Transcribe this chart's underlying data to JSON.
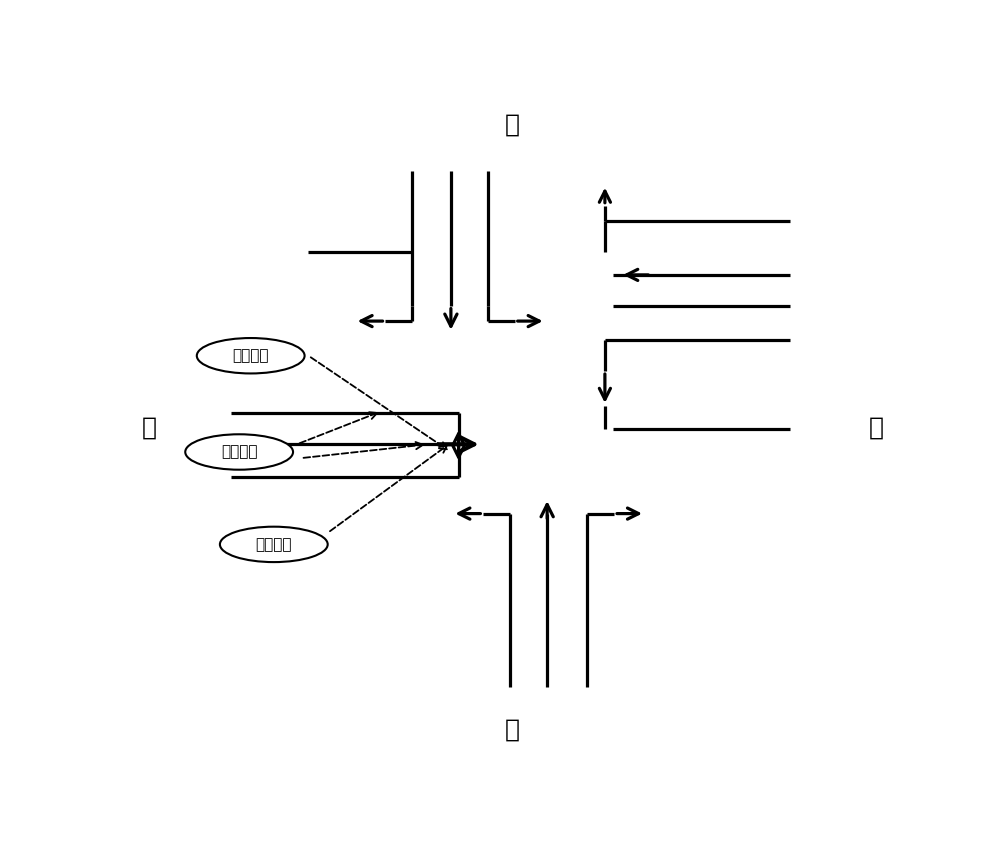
{
  "bg": "#ffffff",
  "lw": 2.3,
  "compass": {
    "N": "北",
    "S": "南",
    "W": "西",
    "E": "东"
  },
  "labels": {
    "left_turn": "左转车道",
    "straight": "直行车道",
    "right_turn": "右转车道"
  }
}
